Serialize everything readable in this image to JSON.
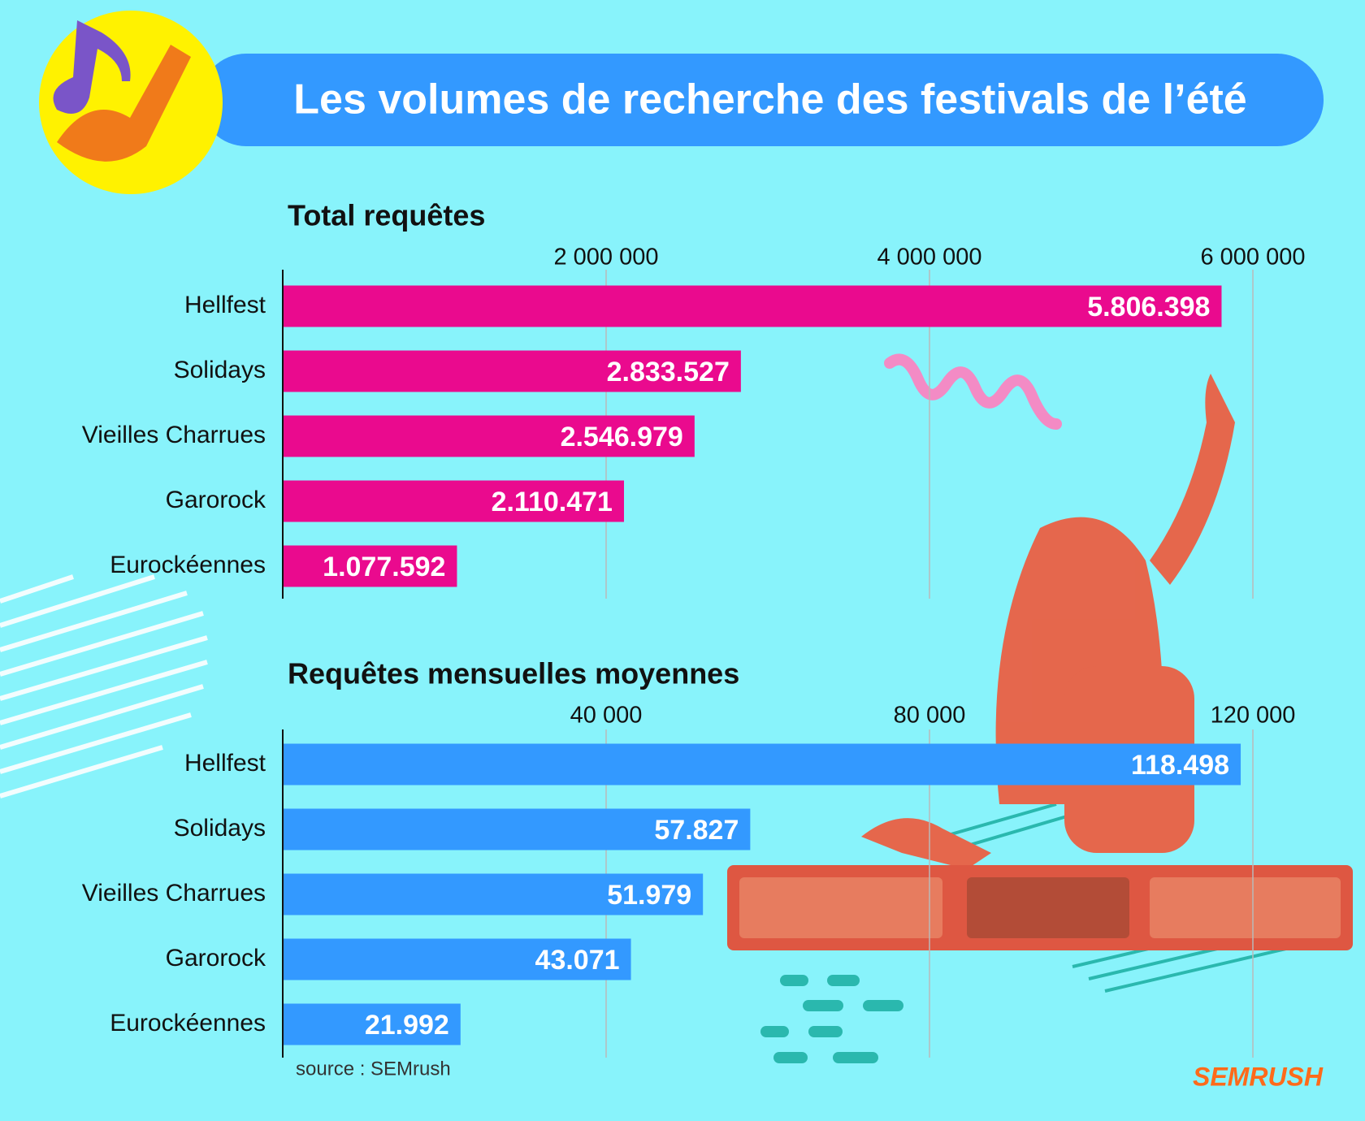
{
  "title": "Les volumes de recherche des festivals de l’été",
  "source": "source : SEMrush",
  "logo": "SEMRUSH",
  "chart_data": [
    {
      "type": "bar",
      "title": "Total requêtes",
      "color": "#ea0a8e",
      "grid": true,
      "categories": [
        "Hellfest",
        "Solidays",
        "Vieilles Charrues",
        "Garorock",
        "Eurockéennes"
      ],
      "values": [
        5806398,
        2833527,
        2546979,
        2110471,
        1077592
      ],
      "value_labels": [
        "5.806.398",
        "2.833.527",
        "2.546.979",
        "2.110.471",
        "1.077.592"
      ],
      "xlim": [
        0,
        6000000
      ],
      "xticks": [
        {
          "value": 2000000,
          "label": "2 000 000"
        },
        {
          "value": 4000000,
          "label": "4 000 000"
        },
        {
          "value": 6000000,
          "label": "6 000 000"
        }
      ]
    },
    {
      "type": "bar",
      "title": "Requêtes mensuelles moyennes",
      "color": "#3399ff",
      "grid": true,
      "categories": [
        "Hellfest",
        "Solidays",
        "Vieilles Charrues",
        "Garorock",
        "Eurockéennes"
      ],
      "values": [
        118498,
        57827,
        51979,
        43071,
        21992
      ],
      "value_labels": [
        "118.498",
        "57.827",
        "51.979",
        "43.071",
        "21.992"
      ],
      "xlim": [
        0,
        120000
      ],
      "xticks": [
        {
          "value": 40000,
          "label": "40 000"
        },
        {
          "value": 80000,
          "label": "80 000"
        },
        {
          "value": 120000,
          "label": "120 000"
        }
      ]
    }
  ]
}
